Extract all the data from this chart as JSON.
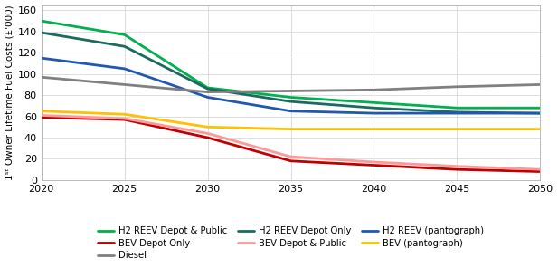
{
  "years": [
    2020,
    2025,
    2030,
    2035,
    2040,
    2045,
    2050
  ],
  "series_order": [
    "H2 REEV Depot & Public",
    "H2 REEV Depot Only",
    "H2 REEV (pantograph)",
    "BEV Depot Only",
    "BEV Depot & Public",
    "BEV (pantograph)",
    "Diesel"
  ],
  "series": {
    "H2 REEV Depot & Public": {
      "color": "#00b050",
      "linewidth": 2.0,
      "values": [
        150,
        137,
        87,
        78,
        73,
        68,
        68
      ]
    },
    "H2 REEV Depot Only": {
      "color": "#1a6b5e",
      "linewidth": 2.0,
      "values": [
        139,
        126,
        86,
        74,
        68,
        64,
        63
      ]
    },
    "H2 REEV (pantograph)": {
      "color": "#2058b0",
      "linewidth": 2.0,
      "values": [
        115,
        105,
        78,
        65,
        63,
        63,
        63
      ]
    },
    "BEV Depot Only": {
      "color": "#c00000",
      "linewidth": 2.0,
      "values": [
        59,
        57,
        40,
        18,
        14,
        10,
        8
      ]
    },
    "BEV Depot & Public": {
      "color": "#ff9999",
      "linewidth": 2.0,
      "values": [
        61,
        58,
        44,
        22,
        17,
        13,
        10
      ]
    },
    "BEV (pantograph)": {
      "color": "#ffc000",
      "linewidth": 2.0,
      "values": [
        65,
        62,
        50,
        48,
        48,
        48,
        48
      ]
    },
    "Diesel": {
      "color": "#808080",
      "linewidth": 2.0,
      "values": [
        97,
        90,
        83,
        84,
        85,
        88,
        90
      ]
    }
  },
  "ylabel": "1ˢᵗ Owner Lifetime Fuel Costs (£'000)",
  "ylim": [
    0,
    165
  ],
  "xlim": [
    2020,
    2050
  ],
  "yticks": [
    0,
    20,
    40,
    60,
    80,
    100,
    120,
    140,
    160
  ],
  "xticks": [
    2020,
    2025,
    2030,
    2035,
    2040,
    2045,
    2050
  ],
  "legend_col1": [
    "H2 REEV Depot & Public",
    "H2 REEV Depot Only",
    "H2 REEV (pantograph)"
  ],
  "legend_col2": [
    "BEV Depot Only",
    "BEV Depot & Public",
    "BEV (pantograph)"
  ],
  "legend_col3": [
    "Diesel"
  ],
  "background_color": "#ffffff"
}
